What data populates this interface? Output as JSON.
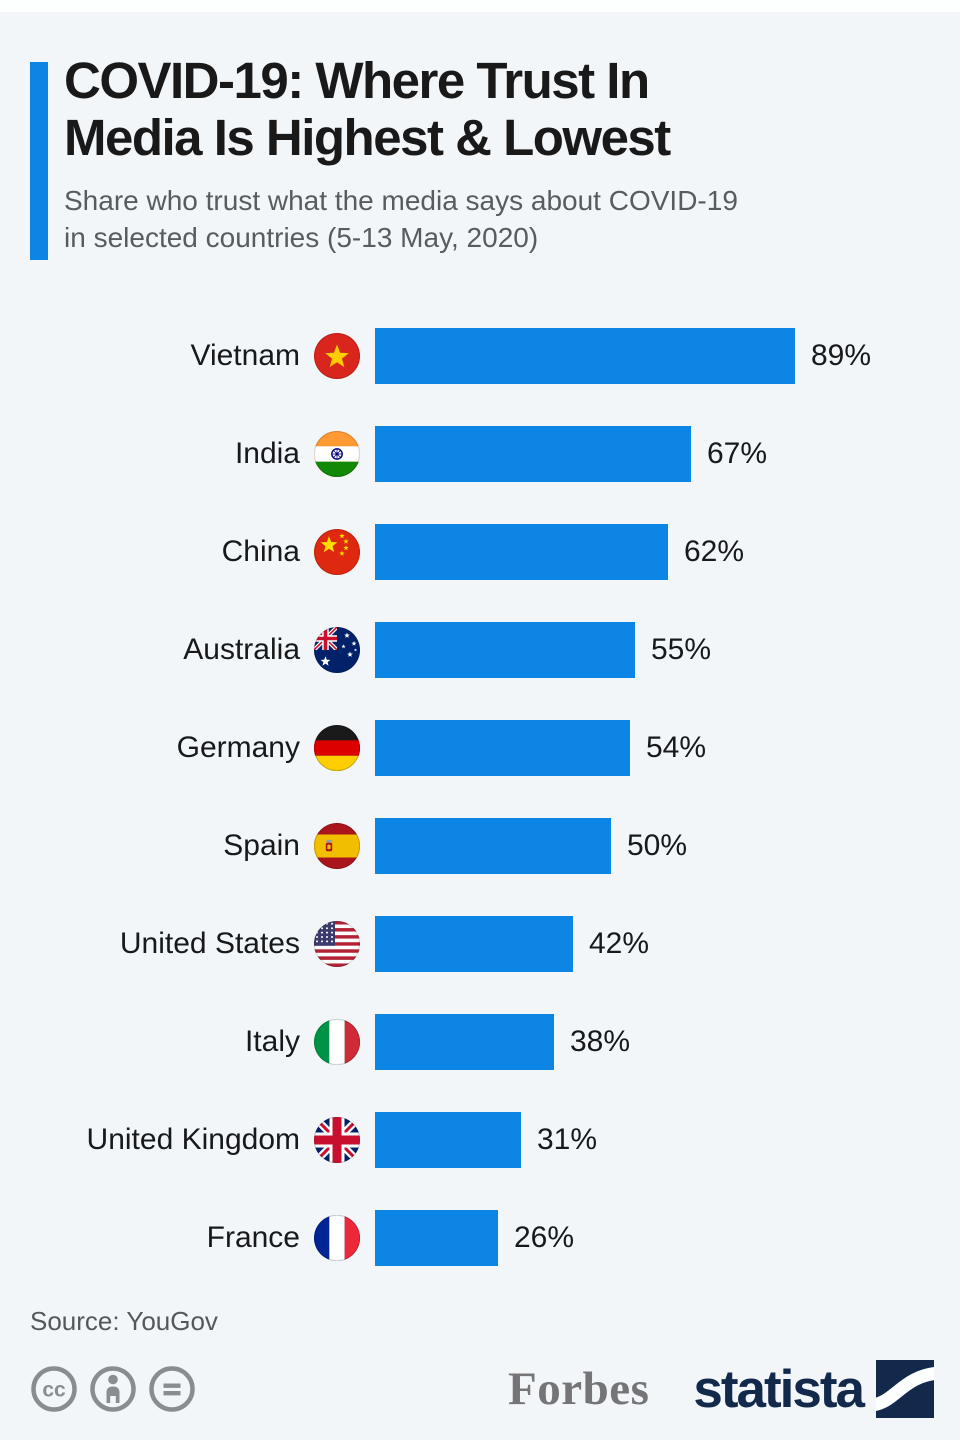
{
  "header": {
    "title_line1": "COVID-19: Where Trust In",
    "title_line2": "Media Is Highest & Lowest",
    "subtitle_line1": "Share who trust what the media says about COVID-19",
    "subtitle_line2": "in selected countries (5-13 May, 2020)"
  },
  "chart_data": {
    "type": "bar",
    "orientation": "horizontal",
    "title": "COVID-19: Where Trust In Media Is Highest & Lowest",
    "subtitle": "Share who trust what the media says about COVID-19 in selected countries (5-13 May, 2020)",
    "categories": [
      "Vietnam",
      "India",
      "China",
      "Australia",
      "Germany",
      "Spain",
      "United States",
      "Italy",
      "United Kingdom",
      "France"
    ],
    "values": [
      89,
      67,
      62,
      55,
      54,
      50,
      42,
      38,
      31,
      26
    ],
    "value_labels": [
      "89%",
      "67%",
      "62%",
      "55%",
      "54%",
      "50%",
      "42%",
      "38%",
      "31%",
      "26%"
    ],
    "flags": [
      "vn",
      "in",
      "cn",
      "au",
      "de",
      "es",
      "us",
      "it",
      "gb",
      "fr"
    ],
    "unit": "%",
    "xlim": [
      0,
      100
    ],
    "grid": false,
    "legend": "none",
    "bar_color": "#0d85e4"
  },
  "footer": {
    "source": "Source: YouGov",
    "license_icons": [
      "creative-commons",
      "attribution",
      "no-derivatives"
    ],
    "forbes_label": "Forbes",
    "statista_label": "statista"
  },
  "colors": {
    "accent": "#0d85e4",
    "background": "#f2f6f9",
    "statista_navy": "#12294b",
    "title_text": "#191919",
    "subtitle_text": "#585c60",
    "license_gray": "#8a8d8f"
  }
}
